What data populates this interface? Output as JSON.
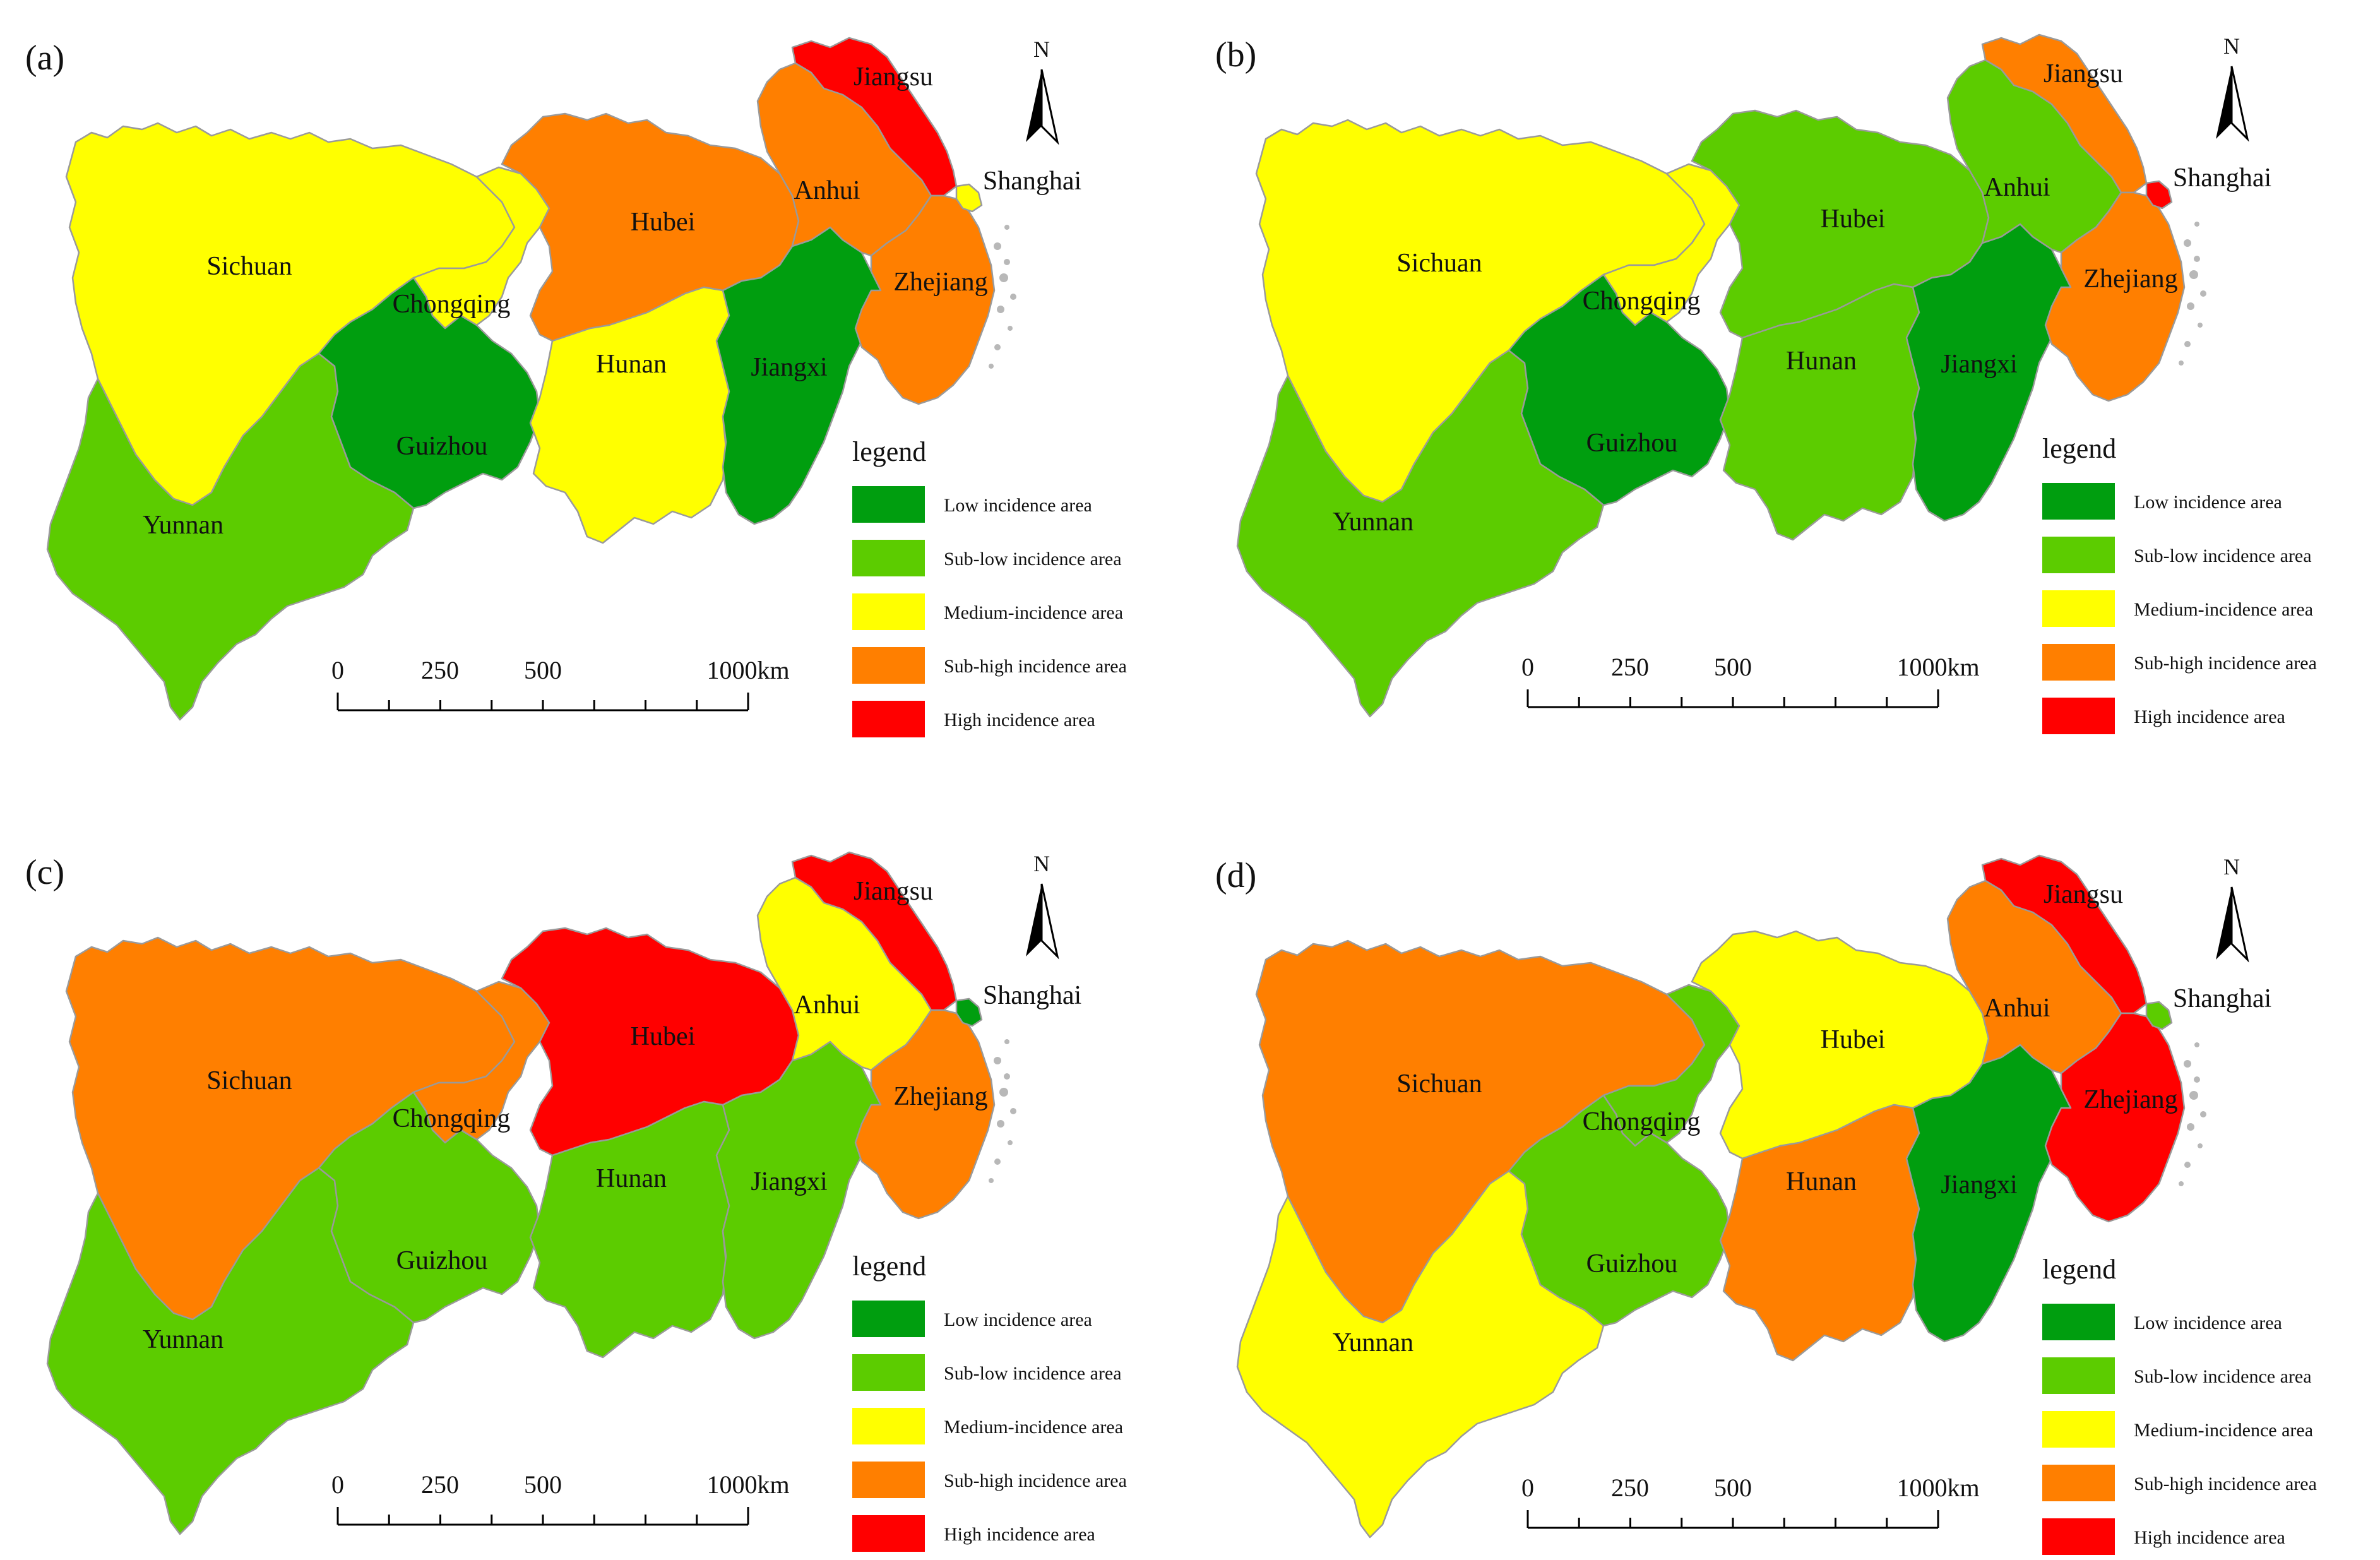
{
  "colors": {
    "low": "#009e0f",
    "sublow": "#5ccc00",
    "medium": "#ffff00",
    "subhigh": "#ff7f00",
    "high": "#ff0000"
  },
  "legend": {
    "title": "legend",
    "items": [
      {
        "key": "low",
        "label": "Low incidence area"
      },
      {
        "key": "sublow",
        "label": "Sub-low incidence area"
      },
      {
        "key": "medium",
        "label": "Medium-incidence area"
      },
      {
        "key": "subhigh",
        "label": "Sub-high incidence area"
      },
      {
        "key": "high",
        "label": "High incidence area"
      }
    ]
  },
  "scale_bar": {
    "ticks": [
      "0",
      "250",
      "500",
      "1000km"
    ]
  },
  "north_label": "N",
  "province_names": [
    "Sichuan",
    "Chongqing",
    "Yunnan",
    "Guizhou",
    "Hubei",
    "Hunan",
    "Jiangxi",
    "Anhui",
    "Jiangsu",
    "Zhejiang",
    "Shanghai"
  ],
  "panels": [
    {
      "label": "(a)",
      "classes": {
        "Sichuan": "medium",
        "Chongqing": "medium",
        "Yunnan": "sublow",
        "Guizhou": "low",
        "Hubei": "subhigh",
        "Hunan": "medium",
        "Jiangxi": "low",
        "Anhui": "subhigh",
        "Jiangsu": "high",
        "Zhejiang": "subhigh",
        "Shanghai": "medium"
      }
    },
    {
      "label": "(b)",
      "classes": {
        "Sichuan": "medium",
        "Chongqing": "medium",
        "Yunnan": "sublow",
        "Guizhou": "low",
        "Hubei": "sublow",
        "Hunan": "sublow",
        "Jiangxi": "low",
        "Anhui": "sublow",
        "Jiangsu": "subhigh",
        "Zhejiang": "subhigh",
        "Shanghai": "high"
      }
    },
    {
      "label": "(c)",
      "classes": {
        "Sichuan": "subhigh",
        "Chongqing": "subhigh",
        "Yunnan": "sublow",
        "Guizhou": "sublow",
        "Hubei": "high",
        "Hunan": "sublow",
        "Jiangxi": "sublow",
        "Anhui": "medium",
        "Jiangsu": "high",
        "Zhejiang": "subhigh",
        "Shanghai": "low"
      }
    },
    {
      "label": "(d)",
      "classes": {
        "Sichuan": "subhigh",
        "Chongqing": "sublow",
        "Yunnan": "medium",
        "Guizhou": "sublow",
        "Hubei": "medium",
        "Hunan": "subhigh",
        "Jiangxi": "low",
        "Anhui": "subhigh",
        "Jiangsu": "high",
        "Zhejiang": "high",
        "Shanghai": "sublow"
      }
    }
  ]
}
